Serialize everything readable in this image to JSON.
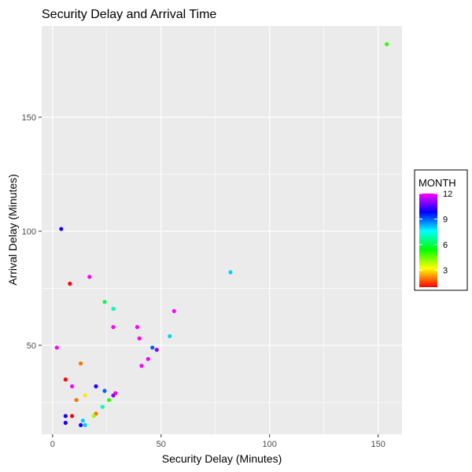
{
  "chart_data": {
    "type": "scatter",
    "title": "Security Delay and Arrival Time",
    "xlabel": "Security Delay (Minutes)",
    "ylabel": "Arrival Delay (Minutes)",
    "xlim": [
      -5,
      161
    ],
    "ylim": [
      11,
      190
    ],
    "x_ticks": [
      0,
      50,
      100,
      150
    ],
    "x_tick_labels": [
      "0",
      "50",
      "100",
      "150"
    ],
    "y_ticks": [
      50,
      100,
      150
    ],
    "y_tick_labels": [
      "50",
      "100",
      "150"
    ],
    "grid": true,
    "legend": {
      "title": "MONTH",
      "placement": "right",
      "scale": [
        1,
        12
      ],
      "ticks": [
        3,
        6,
        9,
        12
      ],
      "tick_labels": [
        "3",
        "6",
        "9",
        "12"
      ],
      "gradient_colors": [
        "#ff0000",
        "#ffff00",
        "#00ff00",
        "#00ffff",
        "#0000ff",
        "#ff00ff"
      ]
    },
    "points": [
      {
        "x": 154,
        "y": 182,
        "month": 5
      },
      {
        "x": 4,
        "y": 101,
        "month": 10
      },
      {
        "x": 82,
        "y": 82,
        "month": 8
      },
      {
        "x": 17,
        "y": 80,
        "month": 12
      },
      {
        "x": 8,
        "y": 77,
        "month": 1
      },
      {
        "x": 24,
        "y": 69,
        "month": 6
      },
      {
        "x": 28,
        "y": 66,
        "month": 7
      },
      {
        "x": 56,
        "y": 65,
        "month": 12
      },
      {
        "x": 28,
        "y": 58,
        "month": 12
      },
      {
        "x": 39,
        "y": 58,
        "month": 12
      },
      {
        "x": 54,
        "y": 54,
        "month": 8
      },
      {
        "x": 40,
        "y": 53,
        "month": 12
      },
      {
        "x": 2,
        "y": 49,
        "month": 12
      },
      {
        "x": 46,
        "y": 49,
        "month": 9
      },
      {
        "x": 48,
        "y": 48,
        "month": 11
      },
      {
        "x": 44,
        "y": 44,
        "month": 12
      },
      {
        "x": 13,
        "y": 42,
        "month": 2
      },
      {
        "x": 41,
        "y": 41,
        "month": 12
      },
      {
        "x": 6,
        "y": 35,
        "month": 1
      },
      {
        "x": 9,
        "y": 32,
        "month": 12
      },
      {
        "x": 20,
        "y": 32,
        "month": 10
      },
      {
        "x": 24,
        "y": 30,
        "month": 9
      },
      {
        "x": 29,
        "y": 29,
        "month": 12
      },
      {
        "x": 28,
        "y": 28,
        "month": 11
      },
      {
        "x": 15,
        "y": 28,
        "month": 3
      },
      {
        "x": 11,
        "y": 26,
        "month": 2
      },
      {
        "x": 26,
        "y": 26,
        "month": 5
      },
      {
        "x": 23,
        "y": 23,
        "month": 7
      },
      {
        "x": 20,
        "y": 20,
        "month": 2
      },
      {
        "x": 19,
        "y": 19,
        "month": 4
      },
      {
        "x": 6,
        "y": 19,
        "month": 10
      },
      {
        "x": 9,
        "y": 19,
        "month": 1
      },
      {
        "x": 14,
        "y": 17,
        "month": 8
      },
      {
        "x": 6,
        "y": 16,
        "month": 10
      },
      {
        "x": 13,
        "y": 15,
        "month": 10
      },
      {
        "x": 15,
        "y": 15,
        "month": 8
      }
    ]
  }
}
